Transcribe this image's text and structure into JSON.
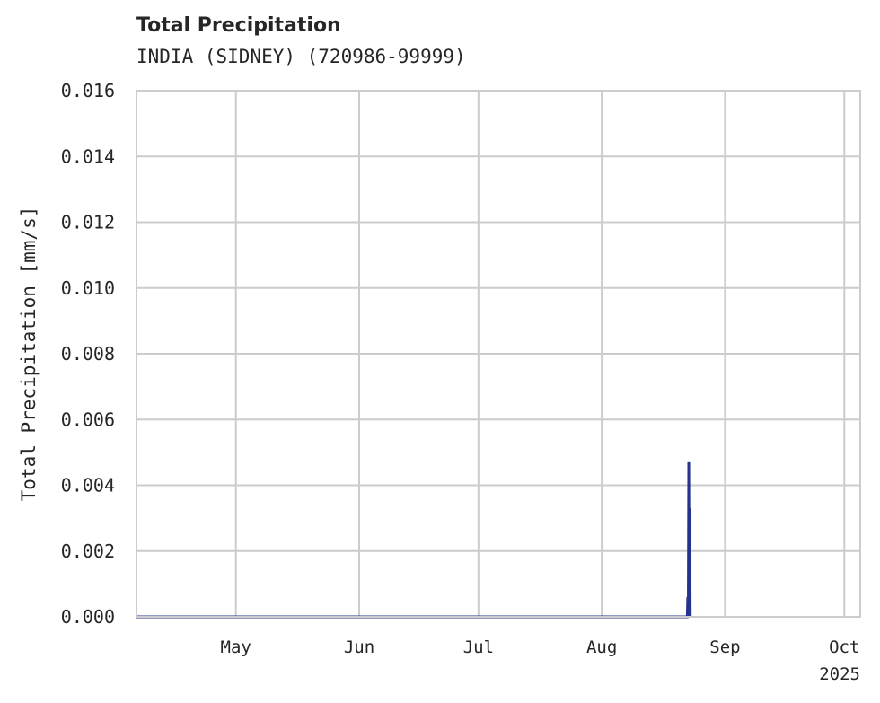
{
  "chart_data": {
    "type": "line",
    "title": "Total Precipitation",
    "subtitle": "INDIA (SIDNEY) (720986-99999)",
    "xlabel": "",
    "ylabel": "Total Precipitation [mm/s]",
    "xlim": [
      "2025-04-06",
      "2025-10-05"
    ],
    "ylim": [
      0,
      0.016
    ],
    "grid": true,
    "x_ticks": [
      {
        "date": "2025-05-01",
        "label": "May"
      },
      {
        "date": "2025-06-01",
        "label": "Jun"
      },
      {
        "date": "2025-07-01",
        "label": "Jul"
      },
      {
        "date": "2025-08-01",
        "label": "Aug"
      },
      {
        "date": "2025-09-01",
        "label": "Sep"
      },
      {
        "date": "2025-10-01",
        "label": "Oct"
      }
    ],
    "x_offset_label": "2025",
    "y_ticks": [
      0,
      0.002,
      0.004,
      0.006,
      0.008,
      0.01,
      0.012,
      0.014,
      0.016
    ],
    "y_tick_labels": [
      "0.000",
      "0.002",
      "0.004",
      "0.006",
      "0.008",
      "0.010",
      "0.012",
      "0.014",
      "0.016"
    ],
    "series": [
      {
        "name": "Total Precipitation",
        "color": "#25338f",
        "points": [
          [
            "2025-04-06T00:00",
            0
          ],
          [
            "2025-08-22T00:00",
            0
          ],
          [
            "2025-08-22T12:00",
            0
          ],
          [
            "2025-08-22T15:00",
            0.0006
          ],
          [
            "2025-08-22T18:00",
            0
          ],
          [
            "2025-08-22T21:00",
            0.0047
          ],
          [
            "2025-08-23T00:00",
            0
          ],
          [
            "2025-08-23T03:00",
            0.0033
          ],
          [
            "2025-08-23T06:00",
            0
          ]
        ]
      }
    ]
  }
}
